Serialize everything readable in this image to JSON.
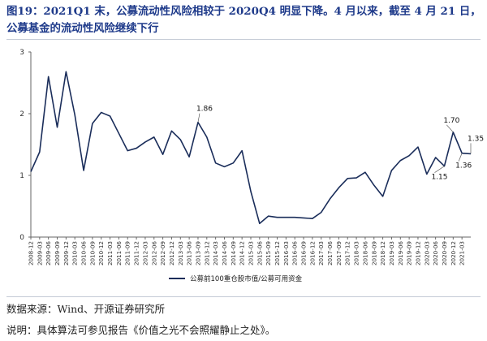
{
  "header": {
    "title": "图19：2021Q1 末，公募流动性风险相较于 2020Q4 明显下降。4 月以来，截至 4 月 21 日，公募基金的流动性风险继续下行"
  },
  "footer": {
    "source": "数据来源：Wind、开源证券研究所",
    "note": "说明：具体算法可参见报告《价值之光不会照耀静止之处》。"
  },
  "colors": {
    "line": "#1a2d5a",
    "title": "#1e3a8a",
    "axis": "#666666"
  },
  "chart_data": {
    "type": "line",
    "ylim": [
      0,
      3
    ],
    "yticks": [
      0,
      1,
      2,
      3
    ],
    "x": [
      "2008-12",
      "2009-03",
      "2009-06",
      "2009-09",
      "2009-12",
      "2010-03",
      "2010-06",
      "2010-09",
      "2010-12",
      "2011-03",
      "2011-06",
      "2011-09",
      "2011-12",
      "2012-03",
      "2012-06",
      "2012-09",
      "2012-12",
      "2013-03",
      "2013-06",
      "2013-09",
      "2013-12",
      "2014-03",
      "2014-06",
      "2014-09",
      "2014-12",
      "2015-03",
      "2015-06",
      "2015-09",
      "2015-12",
      "2016-03",
      "2016-06",
      "2016-09",
      "2016-12",
      "2017-03",
      "2017-06",
      "2017-09",
      "2017-12",
      "2018-03",
      "2018-06",
      "2018-09",
      "2018-12",
      "2019-03",
      "2019-06",
      "2019-09",
      "2019-12",
      "2020-03",
      "2020-06",
      "2020-09",
      "2020-12",
      "2021-03",
      "2021-04"
    ],
    "xticks": [
      "2008-12",
      "2009-03",
      "2009-06",
      "2009-09",
      "2009-12",
      "2010-03",
      "2010-06",
      "2010-09",
      "2010-12",
      "2011-03",
      "2011-06",
      "2011-09",
      "2011-12",
      "2012-03",
      "2012-06",
      "2012-09",
      "2012-12",
      "2013-03",
      "2013-06",
      "2013-09",
      "2013-12",
      "2014-03",
      "2014-06",
      "2014-09",
      "2014-12",
      "2015-03",
      "2015-06",
      "2015-09",
      "2015-12",
      "2016-03",
      "2016-06",
      "2016-09",
      "2016-12",
      "2017-03",
      "2017-06",
      "2017-09",
      "2017-12",
      "2018-03",
      "2018-06",
      "2018-09",
      "2018-12",
      "2019-03",
      "2019-06",
      "2019-09",
      "2019-12",
      "2020-03",
      "2020-06",
      "2020-09",
      "2020-12",
      "2021-03"
    ],
    "series": [
      {
        "name": "公募前100重仓股市值/公募可用资金",
        "values": [
          1.06,
          1.38,
          2.6,
          1.78,
          2.68,
          1.98,
          1.08,
          1.84,
          2.02,
          1.96,
          1.68,
          1.4,
          1.44,
          1.54,
          1.62,
          1.34,
          1.72,
          1.58,
          1.3,
          1.86,
          1.62,
          1.2,
          1.14,
          1.2,
          1.4,
          0.74,
          0.22,
          0.34,
          0.32,
          0.32,
          0.32,
          0.31,
          0.3,
          0.4,
          0.62,
          0.8,
          0.95,
          0.96,
          1.05,
          0.84,
          0.66,
          1.08,
          1.24,
          1.32,
          1.46,
          1.02,
          1.29,
          1.15,
          1.7,
          1.36,
          1.35
        ]
      }
    ],
    "data_labels": [
      {
        "text": "1.86",
        "x": "2013-09",
        "value": 1.86
      },
      {
        "text": "1.70",
        "x": "2020-12",
        "value": 1.7
      },
      {
        "text": "1.15",
        "x": "2020-09",
        "value": 1.15
      },
      {
        "text": "1.36",
        "x": "2021-03",
        "value": 1.36
      },
      {
        "text": "1.35",
        "x": "2021-04",
        "value": 1.35
      }
    ],
    "legend": {
      "position": "bottom"
    },
    "grid": false
  }
}
